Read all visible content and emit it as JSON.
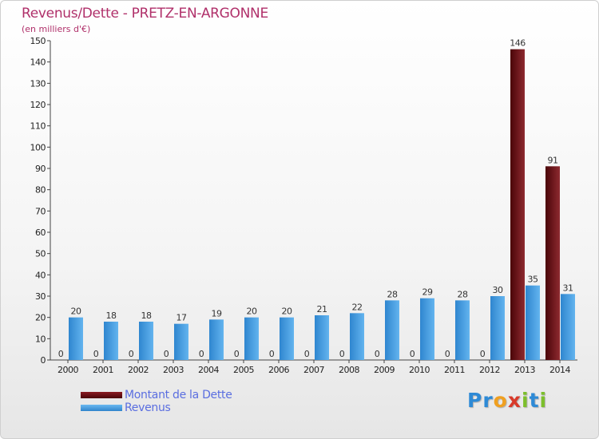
{
  "chart_data": {
    "type": "bar",
    "title": "Revenus/Dette - PRETZ-EN-ARGONNE",
    "subtitle": "(en milliers d'€)",
    "categories": [
      "2000",
      "2001",
      "2002",
      "2003",
      "2004",
      "2005",
      "2006",
      "2007",
      "2008",
      "2009",
      "2010",
      "2011",
      "2012",
      "2013",
      "2014"
    ],
    "series": [
      {
        "name": "Montant de la Dette",
        "color": "#6b0f14",
        "values": [
          0,
          0,
          0,
          0,
          0,
          0,
          0,
          0,
          0,
          0,
          0,
          0,
          0,
          146,
          91
        ]
      },
      {
        "name": "Revenus",
        "color": "#4aa3e8",
        "values": [
          20,
          18,
          18,
          17,
          19,
          20,
          20,
          21,
          22,
          28,
          29,
          28,
          30,
          35,
          31
        ]
      }
    ],
    "ylim": [
      0,
      150
    ],
    "yticks": [
      0,
      10,
      20,
      30,
      40,
      50,
      60,
      70,
      80,
      90,
      100,
      110,
      120,
      130,
      140,
      150
    ],
    "grid": false,
    "legend": "bottom-left"
  },
  "legend": {
    "dette_label": "Montant de la Dette",
    "revenus_label": "Revenus"
  },
  "logo": {
    "letters": [
      "P",
      "r",
      "o",
      "x",
      "i",
      "t",
      "i"
    ]
  }
}
